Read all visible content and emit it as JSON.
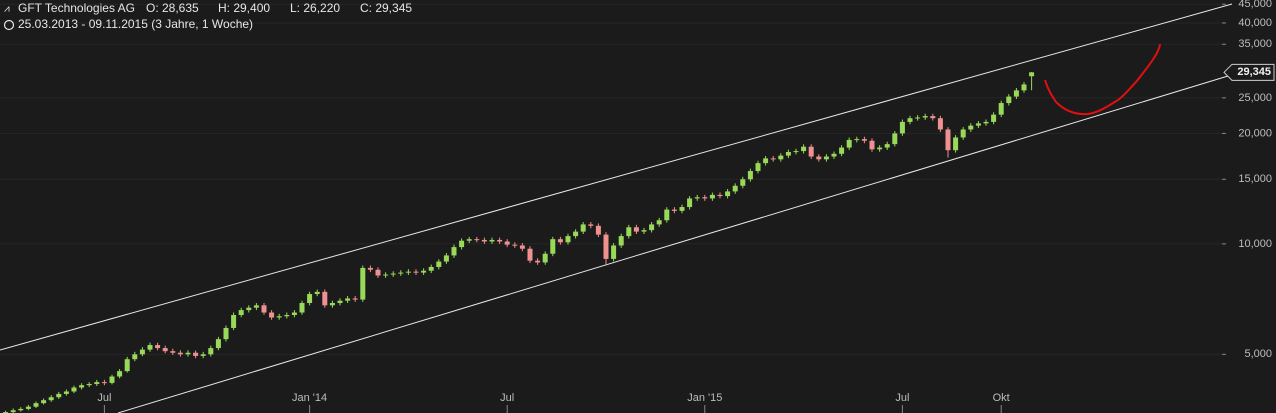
{
  "chart_data": {
    "type": "candlestick",
    "header": {
      "name": "GFT Technologies AG",
      "ohlc": [
        "O: 28,635",
        "H: 29,400",
        "L: 26,220",
        "C: 29,345"
      ],
      "range": "25.03.2013 - 09.11.2015 (3 Jahre, 1 Woche)"
    },
    "last_price_label": "29,345",
    "y_scale": "log",
    "grid": true,
    "up_color": "#98d95a",
    "down_color": "#f09090",
    "ylim": [
      3460,
      46200
    ],
    "yticks": [
      {
        "value": 5000,
        "label": "5,000"
      },
      {
        "value": 10000,
        "label": "10,000"
      },
      {
        "value": 15000,
        "label": "15,000"
      },
      {
        "value": 20000,
        "label": "20,000"
      },
      {
        "value": 25000,
        "label": "25,000"
      },
      {
        "value": 35000,
        "label": "35,000"
      },
      {
        "value": 40000,
        "label": "40,000"
      },
      {
        "value": 45000,
        "label": "45,000"
      }
    ],
    "categories": [
      null,
      null,
      null,
      null,
      null,
      null,
      null,
      null,
      null,
      null,
      null,
      null,
      null,
      null,
      "Jul",
      null,
      null,
      null,
      null,
      null,
      null,
      null,
      null,
      null,
      null,
      null,
      null,
      null,
      null,
      null,
      null,
      null,
      null,
      null,
      null,
      null,
      null,
      null,
      null,
      null,
      null,
      "Jan '14",
      null,
      null,
      null,
      null,
      null,
      null,
      null,
      null,
      null,
      null,
      null,
      null,
      null,
      null,
      null,
      null,
      null,
      null,
      null,
      null,
      null,
      null,
      null,
      null,
      null,
      "Jul",
      null,
      null,
      null,
      null,
      null,
      null,
      null,
      null,
      null,
      null,
      null,
      null,
      null,
      null,
      null,
      null,
      null,
      null,
      null,
      null,
      null,
      null,
      null,
      null,
      null,
      "Jan '15",
      null,
      null,
      null,
      null,
      null,
      null,
      null,
      null,
      null,
      null,
      null,
      null,
      null,
      null,
      null,
      null,
      null,
      null,
      null,
      null,
      null,
      null,
      null,
      null,
      null,
      "Jul",
      null,
      null,
      null,
      null,
      null,
      null,
      null,
      null,
      null,
      null,
      null,
      null,
      "Okt",
      null,
      null,
      null,
      null
    ],
    "series": [
      {
        "name": "GFT Technologies AG",
        "open": [
          3430,
          3450,
          3480,
          3520,
          3550,
          3600,
          3680,
          3750,
          3820,
          3900,
          3960,
          4060,
          4120,
          4150,
          4200,
          4180,
          4350,
          4500,
          4850,
          5000,
          5150,
          5300,
          5200,
          5100,
          5050,
          5000,
          5050,
          4950,
          5000,
          5200,
          5500,
          5900,
          6400,
          6600,
          6700,
          6800,
          6500,
          6300,
          6350,
          6400,
          6500,
          6900,
          7300,
          7400,
          6800,
          6900,
          7000,
          7100,
          7050,
          8600,
          8500,
          8200,
          8250,
          8300,
          8350,
          8400,
          8350,
          8450,
          8650,
          8950,
          9300,
          9800,
          10200,
          10300,
          10250,
          10150,
          10250,
          10150,
          9950,
          9900,
          9700,
          9000,
          8900,
          9400,
          10300,
          10100,
          10500,
          10800,
          11300,
          11200,
          10600,
          9100,
          9900,
          10500,
          11100,
          10800,
          10900,
          11300,
          11600,
          12400,
          12300,
          12600,
          13300,
          13400,
          13300,
          13600,
          13500,
          13900,
          14400,
          15000,
          15800,
          16600,
          17100,
          17000,
          17400,
          17800,
          17900,
          18400,
          17300,
          17000,
          17300,
          17600,
          18300,
          19200,
          19300,
          19100,
          18100,
          18300,
          18700,
          20000,
          21500,
          22000,
          22100,
          22300,
          22000,
          20500,
          18000,
          19500,
          20500,
          21000,
          21300,
          21500,
          22500,
          24200,
          25200,
          26200,
          28635
        ],
        "high": [
          3490,
          3510,
          3560,
          3590,
          3640,
          3720,
          3790,
          3870,
          3950,
          4010,
          4110,
          4170,
          4200,
          4260,
          4260,
          4400,
          4560,
          4920,
          5080,
          5230,
          5380,
          5380,
          5280,
          5180,
          5130,
          5130,
          5120,
          5080,
          5280,
          5580,
          5990,
          6500,
          6700,
          6800,
          6900,
          6900,
          6600,
          6450,
          6500,
          6600,
          7000,
          7410,
          7510,
          7510,
          7000,
          7110,
          7210,
          7210,
          8730,
          8730,
          8630,
          8370,
          8420,
          8480,
          8530,
          8530,
          8580,
          8780,
          9080,
          9440,
          9950,
          10350,
          10450,
          10450,
          10400,
          10400,
          10400,
          10300,
          10100,
          10050,
          9850,
          9140,
          9540,
          10450,
          10450,
          10660,
          10960,
          11470,
          11470,
          11370,
          10760,
          10050,
          10660,
          11270,
          11270,
          11060,
          11470,
          11770,
          12590,
          12590,
          12790,
          13500,
          13600,
          13600,
          13800,
          13800,
          14110,
          14620,
          15230,
          16040,
          16850,
          17360,
          17360,
          17660,
          18070,
          18170,
          18680,
          18680,
          17560,
          17560,
          17860,
          18570,
          19490,
          19590,
          19590,
          19390,
          18570,
          18980,
          20300,
          21820,
          22330,
          22430,
          22630,
          22630,
          22330,
          20810,
          19790,
          20810,
          21320,
          21620,
          21820,
          22840,
          24560,
          25580,
          26590,
          27610,
          29400
        ],
        "low": [
          3400,
          3420,
          3450,
          3490,
          3520,
          3570,
          3650,
          3710,
          3780,
          3860,
          3920,
          4010,
          4070,
          4100,
          4120,
          4140,
          4300,
          4460,
          4790,
          4940,
          5080,
          5130,
          5030,
          4980,
          4930,
          4930,
          4880,
          4880,
          4930,
          5130,
          5420,
          5820,
          6310,
          6500,
          6600,
          6410,
          6210,
          6210,
          6260,
          6310,
          6410,
          6800,
          7200,
          6700,
          6700,
          6800,
          6900,
          6950,
          6950,
          8380,
          8080,
          8080,
          8130,
          8180,
          8230,
          8230,
          8230,
          8330,
          8520,
          8820,
          9160,
          9650,
          10050,
          10100,
          10000,
          10000,
          10000,
          9800,
          9750,
          9550,
          8870,
          8770,
          8770,
          9260,
          9950,
          9950,
          10340,
          10640,
          11030,
          10440,
          8760,
          8960,
          9750,
          10340,
          10640,
          10640,
          10740,
          11130,
          11430,
          12120,
          12120,
          12410,
          13100,
          13100,
          13100,
          13300,
          13300,
          13690,
          14180,
          14780,
          15560,
          16350,
          16750,
          16750,
          17140,
          17530,
          17630,
          17040,
          16750,
          16750,
          17040,
          17340,
          18030,
          18910,
          18810,
          17830,
          17830,
          18030,
          18420,
          19700,
          21180,
          21670,
          21770,
          21670,
          20190,
          17200,
          17730,
          19210,
          20190,
          20690,
          20980,
          21180,
          22160,
          23840,
          24820,
          25810,
          26220
        ],
        "close": [
          3450,
          3480,
          3520,
          3550,
          3600,
          3680,
          3750,
          3820,
          3900,
          3960,
          4060,
          4120,
          4150,
          4200,
          4180,
          4350,
          4500,
          4850,
          5000,
          5150,
          5300,
          5200,
          5100,
          5050,
          5000,
          5050,
          4950,
          5000,
          5200,
          5500,
          5900,
          6400,
          6600,
          6700,
          6800,
          6500,
          6300,
          6350,
          6400,
          6500,
          6900,
          7300,
          7400,
          6800,
          6900,
          7000,
          7100,
          7050,
          8600,
          8500,
          8200,
          8250,
          8300,
          8350,
          8400,
          8350,
          8450,
          8650,
          8950,
          9300,
          9800,
          10200,
          10300,
          10250,
          10150,
          10250,
          10150,
          9950,
          9900,
          9700,
          9000,
          8900,
          9400,
          10300,
          10100,
          10500,
          10800,
          11300,
          11200,
          10600,
          9100,
          9900,
          10500,
          11100,
          10800,
          10900,
          11300,
          11600,
          12400,
          12300,
          12600,
          13300,
          13400,
          13300,
          13600,
          13500,
          13900,
          14400,
          15000,
          15800,
          16600,
          17100,
          17000,
          17400,
          17800,
          17900,
          18400,
          17300,
          17000,
          17300,
          17600,
          18300,
          19200,
          19300,
          19100,
          18100,
          18300,
          18700,
          20000,
          21500,
          22000,
          22100,
          22300,
          22000,
          20500,
          18000,
          19500,
          20500,
          21000,
          21300,
          21500,
          22500,
          24200,
          25200,
          26200,
          27200,
          29345
        ]
      }
    ]
  }
}
